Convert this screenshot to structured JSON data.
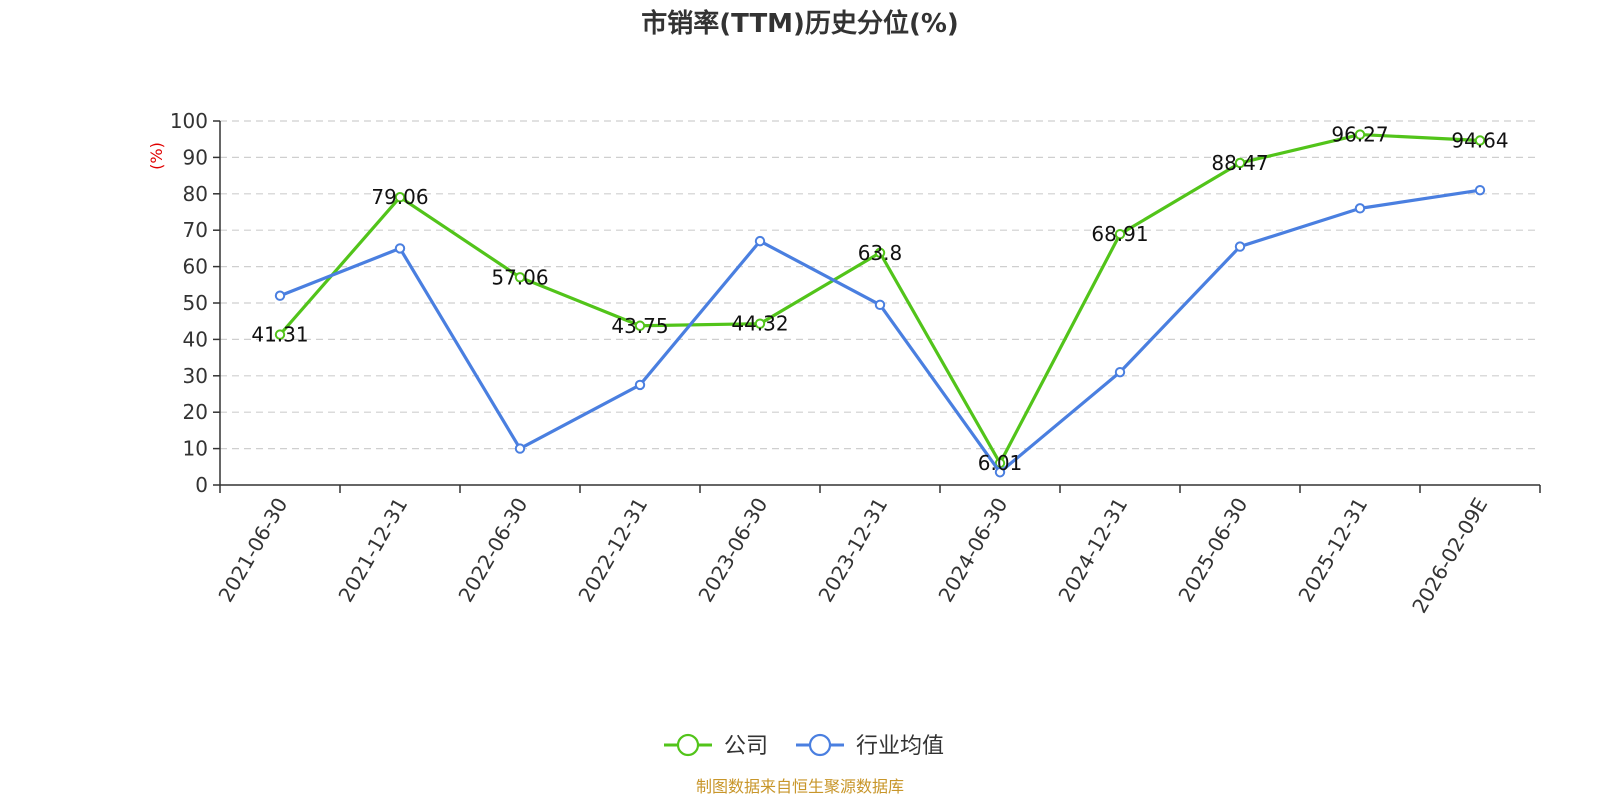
{
  "chart_data": {
    "type": "line",
    "title": "市销率(TTM)历史分位(%)",
    "ylabel": "(%)",
    "xlabel": "",
    "ylim": [
      0,
      100
    ],
    "yticks": [
      0,
      10,
      20,
      30,
      40,
      50,
      60,
      70,
      80,
      90,
      100
    ],
    "categories": [
      "2021-06-30",
      "2021-12-31",
      "2022-06-30",
      "2022-12-31",
      "2023-06-30",
      "2023-12-31",
      "2024-06-30",
      "2024-12-31",
      "2025-06-30",
      "2025-12-31",
      "2026-02-09E"
    ],
    "series": [
      {
        "name": "公司",
        "color": "#52c41a",
        "values": [
          41.31,
          79.06,
          57.06,
          43.75,
          44.32,
          63.8,
          6.01,
          68.91,
          88.47,
          96.27,
          94.64
        ],
        "labels": [
          "41.31",
          "79.06",
          "57.06",
          "43.75",
          "44.32",
          "63.8",
          "6.01",
          "68.91",
          "88.47",
          "96.27",
          "94.64"
        ]
      },
      {
        "name": "行业均值",
        "color": "#4a7fe0",
        "values": [
          52,
          65,
          10,
          27.5,
          67,
          49.5,
          3.5,
          31,
          65.5,
          76,
          81
        ]
      }
    ],
    "grid": true,
    "legend_position": "bottom-center"
  },
  "source_note": "制图数据来自恒生聚源数据库"
}
